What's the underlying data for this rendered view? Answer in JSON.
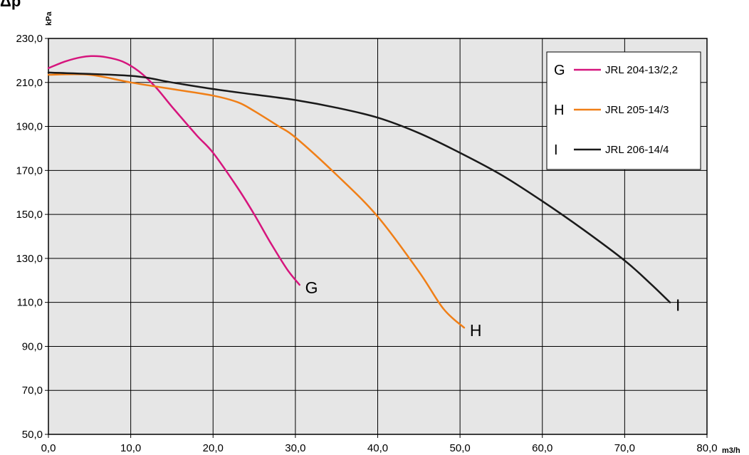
{
  "chart_data": {
    "type": "line",
    "title": "Δp",
    "xlabel": "m3/h",
    "ylabel": "kPa",
    "xlim": [
      0,
      80
    ],
    "ylim": [
      50,
      230
    ],
    "grid": true,
    "background": "#e6e6e6",
    "legend_position": "top-right",
    "x_ticks": [
      "0,0",
      "10,0",
      "20,0",
      "30,0",
      "40,0",
      "50,0",
      "60,0",
      "70,0",
      "80,0"
    ],
    "y_ticks": [
      "50,0",
      "70,0",
      "90,0",
      "110,0",
      "130,0",
      "150,0",
      "170,0",
      "190,0",
      "210,0",
      "230,0"
    ],
    "series": [
      {
        "letter": "G",
        "name": "JRL 204-13/2,2",
        "color": "#d6157d",
        "x": [
          0,
          2,
          4,
          5.5,
          7,
          9,
          11,
          13,
          15,
          18,
          20,
          23,
          25,
          27,
          29,
          30.5
        ],
        "y": [
          216.5,
          219.5,
          221.5,
          222,
          221.5,
          219.5,
          215,
          208,
          199,
          186,
          178,
          162,
          150,
          137,
          125,
          118
        ]
      },
      {
        "letter": "H",
        "name": "JRL 205-14/3",
        "color": "#f07f17",
        "x": [
          0,
          5,
          10,
          15,
          20,
          23,
          25,
          28,
          30,
          35,
          40,
          45,
          48,
          50.5
        ],
        "y": [
          213.5,
          213.5,
          210,
          207,
          204,
          201,
          197,
          190,
          185,
          168,
          149,
          124,
          107,
          98.5
        ]
      },
      {
        "letter": "I",
        "name": "JRL 206-14/4",
        "color": "#1a1a1a",
        "x": [
          0,
          10,
          15,
          20,
          25,
          30,
          35,
          40,
          45,
          50,
          55,
          60,
          65,
          70,
          73,
          75.5
        ],
        "y": [
          214.5,
          213,
          210,
          207,
          204.5,
          202,
          198.5,
          194,
          187,
          178,
          168,
          156,
          143,
          129,
          119,
          110
        ]
      }
    ]
  }
}
